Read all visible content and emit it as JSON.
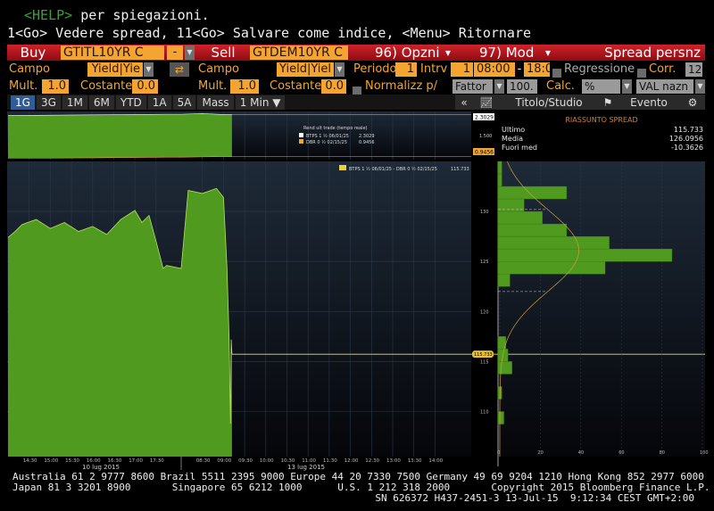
{
  "command_lines": {
    "help_key": "<HELP>",
    "help_text": " per spiegazioni.",
    "line2": "1<Go> Vedere spread, 11<Go> Salvare come indice, <Menu> Ritornare"
  },
  "toolbar": {
    "buy_label": "Buy",
    "buy_ticker": "GTITL10YR C",
    "operator": "-",
    "sell_label": "Sell",
    "sell_ticker": "GTDEM10YR C",
    "options_label": "96) Opzni",
    "mod_label": "97) Mod",
    "title": "Spread persnz"
  },
  "row2": {
    "campo1_label": "Campo",
    "campo1_value": "Yield|Yie",
    "campo2_label": "Campo",
    "campo2_value": "Yield|Yiel",
    "periodo_label": "Periodo",
    "periodo_value": "1",
    "intrv_label": "Intrv",
    "intrv_value": "1",
    "time_from": "08:00",
    "time_sep": "-",
    "time_to": "18:0",
    "regression_label": "Regressione",
    "corr_label": "Corr.",
    "corr_value": "12"
  },
  "row3": {
    "mult1_label": "Mult.",
    "mult1_value": "1.0",
    "cost1_label": "Costante",
    "cost1_value": "0.0",
    "mult2_label": "Mult.",
    "mult2_value": "1.0",
    "cost2_label": "Costante",
    "cost2_value": "0.0",
    "normalize_label": "Normalizz p/",
    "fattor_value": "Fattor",
    "fattor_num": "100.",
    "calc_label": "Calc.",
    "calc_value": "%",
    "currency_value": "VAL nazn"
  },
  "tabs": [
    "1G",
    "3G",
    "1M",
    "6M",
    "YTD",
    "1A",
    "5A",
    "Mass"
  ],
  "active_tab": "1G",
  "interval_select": "1 Min ▼",
  "right_toolbar": {
    "collapse": "«",
    "study_label": "Titolo/Studio",
    "event_label": "Evento"
  },
  "summary": {
    "title": "RIASSUNTO SPREAD",
    "rows": [
      {
        "label": "Ultimo",
        "value": "115.733"
      },
      {
        "label": "Media",
        "value": "126.0956"
      },
      {
        "label": "Fuori med",
        "value": "-10.3626"
      }
    ]
  },
  "colors": {
    "accent_orange": "#f4a531",
    "toolbar_red": "#c41c24",
    "fill_green": "#4f9a1f",
    "btp_line": "#ffffff",
    "dbr_line": "#f4a531",
    "last_line": "#e8e060"
  },
  "chart_data": [
    {
      "type": "area",
      "legend_title": "Rend ult trade (tempo reale)",
      "series": [
        {
          "name": "BTPS 1 ½ 06/01/25",
          "last": "2.3029",
          "values": [
            [
              "10 lug 14:00",
              2.27
            ],
            [
              "10 lug 15:00",
              2.28
            ],
            [
              "10 lug 16:00",
              2.29
            ],
            [
              "10 lug 17:00",
              2.3
            ],
            [
              "10 lug 17:45",
              2.31
            ],
            [
              "13 lug 08:00",
              2.31
            ],
            [
              "13 lug 08:30",
              2.33
            ],
            [
              "13 lug 09:00",
              2.3
            ],
            [
              "13 lug 09:12",
              2.3
            ]
          ]
        },
        {
          "name": "DBR 0 ½ 02/15/25",
          "last": "0.9456",
          "values": [
            [
              "10 lug 14:00",
              0.9
            ],
            [
              "10 lug 15:00",
              0.9
            ],
            [
              "10 lug 16:00",
              0.91
            ],
            [
              "10 lug 17:00",
              0.92
            ],
            [
              "10 lug 17:45",
              0.93
            ],
            [
              "13 lug 08:00",
              0.93
            ],
            [
              "13 lug 08:30",
              0.94
            ],
            [
              "13 lug 09:00",
              0.95
            ],
            [
              "13 lug 09:12",
              0.9456
            ]
          ]
        }
      ],
      "y_ticks": [
        "1.500"
      ],
      "ylim": [
        0.85,
        2.4
      ]
    },
    {
      "type": "area",
      "legend": "BTPS 1 ½ 06/01/25 - DBR 0 ½ 02/15/25",
      "last": "115.733",
      "x_ticks": [
        "14:30",
        "15:00",
        "15:30",
        "16:00",
        "16:30",
        "17:00",
        "17:30",
        "08:30",
        "09:00",
        "09:30",
        "10:00",
        "10:30",
        "11:00",
        "11:30",
        "12:00",
        "12:30",
        "13:00",
        "13:30",
        "14:00"
      ],
      "dates": [
        "10 lug 2015",
        "13 lug 2015"
      ],
      "y_ticks": [
        110,
        115,
        120,
        125,
        130
      ],
      "ylim": [
        105.5,
        135
      ],
      "values": [
        [
          "10 lug 14:00",
          127.4
        ],
        [
          "10 lug 14:10",
          128.0
        ],
        [
          "10 lug 14:20",
          128.7
        ],
        [
          "10 lug 14:40",
          129.2
        ],
        [
          "10 lug 15:00",
          128.3
        ],
        [
          "10 lug 15:20",
          128.9
        ],
        [
          "10 lug 15:40",
          128.0
        ],
        [
          "10 lug 16:00",
          128.5
        ],
        [
          "10 lug 16:20",
          127.7
        ],
        [
          "10 lug 16:40",
          129.2
        ],
        [
          "10 lug 17:00",
          130.1
        ],
        [
          "10 lug 17:10",
          128.9
        ],
        [
          "10 lug 17:20",
          129.6
        ],
        [
          "10 lug 17:30",
          127.0
        ],
        [
          "10 lug 17:40",
          124.3
        ],
        [
          "10 lug 17:45",
          124.6
        ],
        [
          "13 lug 08:00",
          124.3
        ],
        [
          "13 lug 08:10",
          132.1
        ],
        [
          "13 lug 08:30",
          131.8
        ],
        [
          "13 lug 08:50",
          132.3
        ],
        [
          "13 lug 09:00",
          131.4
        ],
        [
          "13 lug 09:05",
          124.3
        ],
        [
          "13 lug 09:08",
          117.2
        ],
        [
          "13 lug 09:10",
          108.8
        ],
        [
          "13 lug 09:11",
          117.2
        ],
        [
          "13 lug 09:12",
          115.733
        ]
      ]
    },
    {
      "type": "bar",
      "orientation": "horizontal",
      "bin_width": 1.25,
      "bins": [
        [
          133.75,
          1
        ],
        [
          132.5,
          1
        ],
        [
          131.25,
          33
        ],
        [
          130,
          12
        ],
        [
          128.75,
          21
        ],
        [
          127.5,
          33
        ],
        [
          126.25,
          54
        ],
        [
          125,
          85
        ],
        [
          123.75,
          52
        ],
        [
          122.5,
          5
        ],
        [
          116.25,
          3
        ],
        [
          115,
          4
        ],
        [
          113.75,
          6
        ],
        [
          111.25,
          1
        ],
        [
          108.75,
          2
        ]
      ],
      "normal_fit": {
        "mean": 126.0956,
        "sd": 4.1
      },
      "x_ticks": [
        0,
        20,
        40,
        60,
        80,
        100
      ],
      "xlim": [
        0,
        100
      ]
    }
  ],
  "footer": {
    "line1": "Australia 61 2 9777 8600 Brazil 5511 2395 9000 Europe 44 20 7330 7500 Germany 49 69 9204 1210 Hong Kong 852 2977 6000",
    "line2": "Japan 81 3 3201 8900       Singapore 65 6212 1000      U.S. 1 212 318 2000       Copyright 2015 Bloomberg Finance L.P.",
    "line3": "SN 626372 H437-2451-3 13-Jul-15  9:12:34 CEST GMT+2:00"
  }
}
